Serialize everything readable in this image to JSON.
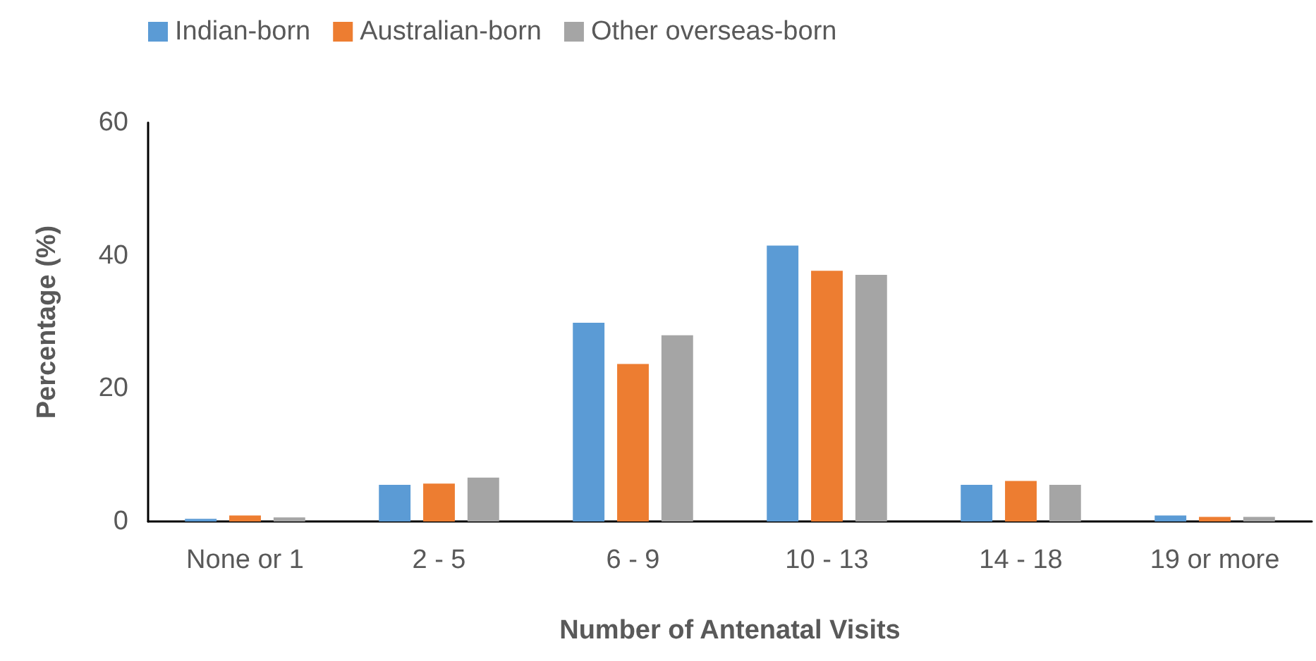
{
  "chart_data": {
    "type": "bar",
    "xlabel": "Number of Antenatal Visits",
    "ylabel": "Percentage (%)",
    "categories": [
      "None or 1",
      "2 - 5",
      "6 - 9",
      "10 - 13",
      "14 - 18",
      "19 or more"
    ],
    "series": [
      {
        "name": "Indian-born",
        "color": "#5b9bd5",
        "values": [
          0.4,
          5.5,
          29.9,
          41.5,
          5.5,
          0.9
        ]
      },
      {
        "name": "Australian-born",
        "color": "#ed7d31",
        "values": [
          0.9,
          5.7,
          23.7,
          37.7,
          6.1,
          0.7
        ]
      },
      {
        "name": "Other overseas-born",
        "color": "#a5a5a5",
        "values": [
          0.6,
          6.6,
          28.0,
          37.1,
          5.5,
          0.7
        ]
      }
    ],
    "ylim": [
      0,
      60
    ],
    "yticks": [
      0,
      20,
      40,
      60
    ],
    "grid": false,
    "legend": "top left"
  }
}
